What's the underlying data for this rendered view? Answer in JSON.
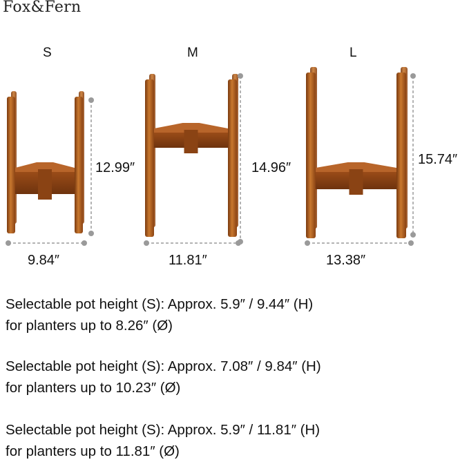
{
  "brand": "Fox&Fern",
  "colors": {
    "wood_dark": "#7a3a10",
    "wood_mid": "#a8561c",
    "wood_light": "#c9782e",
    "dimension_line": "#9a9a9a"
  },
  "stands": [
    {
      "size_label": "S",
      "height": "12.99″",
      "width": "9.84″"
    },
    {
      "size_label": "M",
      "height": "14.96″",
      "width": "11.81″"
    },
    {
      "size_label": "L",
      "height": "15.74″",
      "width": "13.38″"
    }
  ],
  "descriptions": [
    {
      "line1": "Selectable pot height (S): Approx. 5.9″ / 9.44″ (H)",
      "line2": "for planters up to 8.26″ (Ø)"
    },
    {
      "line1": "Selectable pot height (S): Approx. 7.08″ / 9.84″ (H)",
      "line2": "for planters up to 10.23″ (Ø)"
    },
    {
      "line1": "Selectable pot height (S): Approx. 5.9″ / 11.81″ (H)",
      "line2": "for planters up to 11.81″ (Ø)"
    }
  ]
}
